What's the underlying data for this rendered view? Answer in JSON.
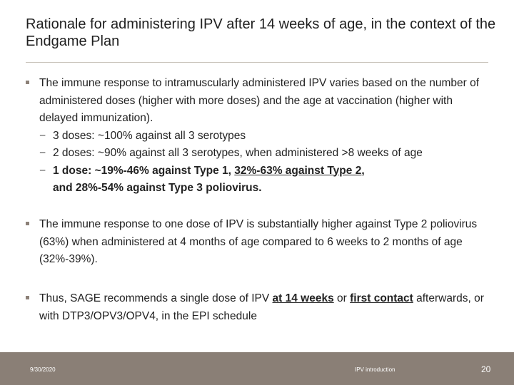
{
  "slide": {
    "title": "Rationale for administering IPV after 14 weeks of age, in the context of the Endgame Plan",
    "bullets": [
      {
        "line1": "The immune response to intramuscularly administered IPV varies based on the number of administered doses (higher with more doses) and the age at vaccination (higher with delayed immunization).",
        "subs": [
          "3 doses: ~100% against all 3 serotypes",
          "2 doses: ~90% against all 3 serotypes, when administered >8 weeks of age"
        ],
        "sub3": {
          "part1": "1 dose:  ~19%-46% against Type 1, ",
          "part2": "32%-63% against Type 2,",
          "part3": "and 28%-54% against Type 3 poliovirus."
        }
      },
      {
        "text": "The immune response to one dose of IPV is substantially higher against Type 2 poliovirus (63%) when administered at 4 months of age compared to 6 weeks to 2 months of age (32%-39%)."
      },
      {
        "part1": "Thus, SAGE recommends a single dose of IPV ",
        "part2": "at 14 weeks",
        "part3": " or ",
        "part4": "first contact",
        "part5": " afterwards, or with DTP3/OPV3/OPV4, in the EPI schedule"
      }
    ],
    "dash": "−"
  },
  "footer": {
    "date": "9/30/2020",
    "center": "IPV introduction",
    "page": "20"
  },
  "colors": {
    "footer_bg": "#8a7f76",
    "bullet_mark": "#8c8178"
  }
}
